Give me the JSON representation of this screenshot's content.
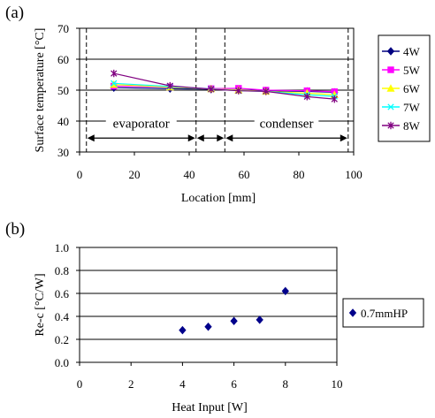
{
  "chart_data": [
    {
      "panel_label": "(a)",
      "type": "line",
      "xlabel": "Location [mm]",
      "ylabel": "Surface temperature [°C]",
      "xlim": [
        0,
        100
      ],
      "ylim": [
        30,
        70
      ],
      "xticks": [
        "0",
        "20",
        "40",
        "60",
        "80",
        "100"
      ],
      "yticks": [
        "30",
        "40",
        "50",
        "60",
        "70"
      ],
      "grid": "horizontal",
      "legend_position": "right",
      "x": [
        12.5,
        33,
        48,
        58,
        68,
        83,
        93
      ],
      "series": [
        {
          "name": "4W",
          "color": "#000080",
          "marker": "diamond",
          "values": [
            50.8,
            50.5,
            50.3,
            50.1,
            49.8,
            49.6,
            49.3
          ]
        },
        {
          "name": "5W",
          "color": "#ff00ff",
          "marker": "square",
          "values": [
            51.3,
            51.0,
            50.5,
            50.6,
            50.0,
            49.8,
            49.5
          ]
        },
        {
          "name": "6W",
          "color": "#ffff00",
          "marker": "triangle",
          "values": [
            51.8,
            51.0,
            50.4,
            50.0,
            49.6,
            49.0,
            48.5
          ]
        },
        {
          "name": "7W",
          "color": "#00ffff",
          "marker": "x",
          "values": [
            52.2,
            51.2,
            50.4,
            49.8,
            49.6,
            48.5,
            48.0
          ]
        },
        {
          "name": "8W",
          "color": "#800080",
          "marker": "star",
          "values": [
            55.4,
            51.4,
            50.3,
            49.8,
            49.6,
            47.9,
            47.1
          ]
        }
      ],
      "dashed_verticals": [
        2.5,
        42.5,
        53,
        98
      ],
      "regions": [
        {
          "label": "evaporator",
          "from": 2.5,
          "to": 42.5,
          "label_x": 22.5
        },
        {
          "label": "",
          "from": 42.5,
          "to": 53
        },
        {
          "label": "condenser",
          "from": 53,
          "to": 98,
          "label_x": 75.5
        }
      ],
      "region_arrow_y": 34.5,
      "region_label_y": 37.8
    },
    {
      "panel_label": "(b)",
      "type": "scatter",
      "xlabel": "Heat Input [W]",
      "ylabel": "Re-c [°C/W]",
      "xlim": [
        0,
        10
      ],
      "ylim": [
        0,
        1
      ],
      "xticks": [
        "0",
        "2",
        "4",
        "6",
        "8",
        "10"
      ],
      "yticks": [
        "0.0",
        "0.2",
        "0.4",
        "0.6",
        "0.8",
        "1.0"
      ],
      "grid": "horizontal",
      "legend_position": "right",
      "series": [
        {
          "name": "0.7mmHP",
          "color": "#00008b",
          "marker": "diamond",
          "x": [
            4,
            5,
            6,
            7,
            8
          ],
          "y": [
            0.28,
            0.31,
            0.36,
            0.37,
            0.62
          ]
        }
      ]
    }
  ]
}
